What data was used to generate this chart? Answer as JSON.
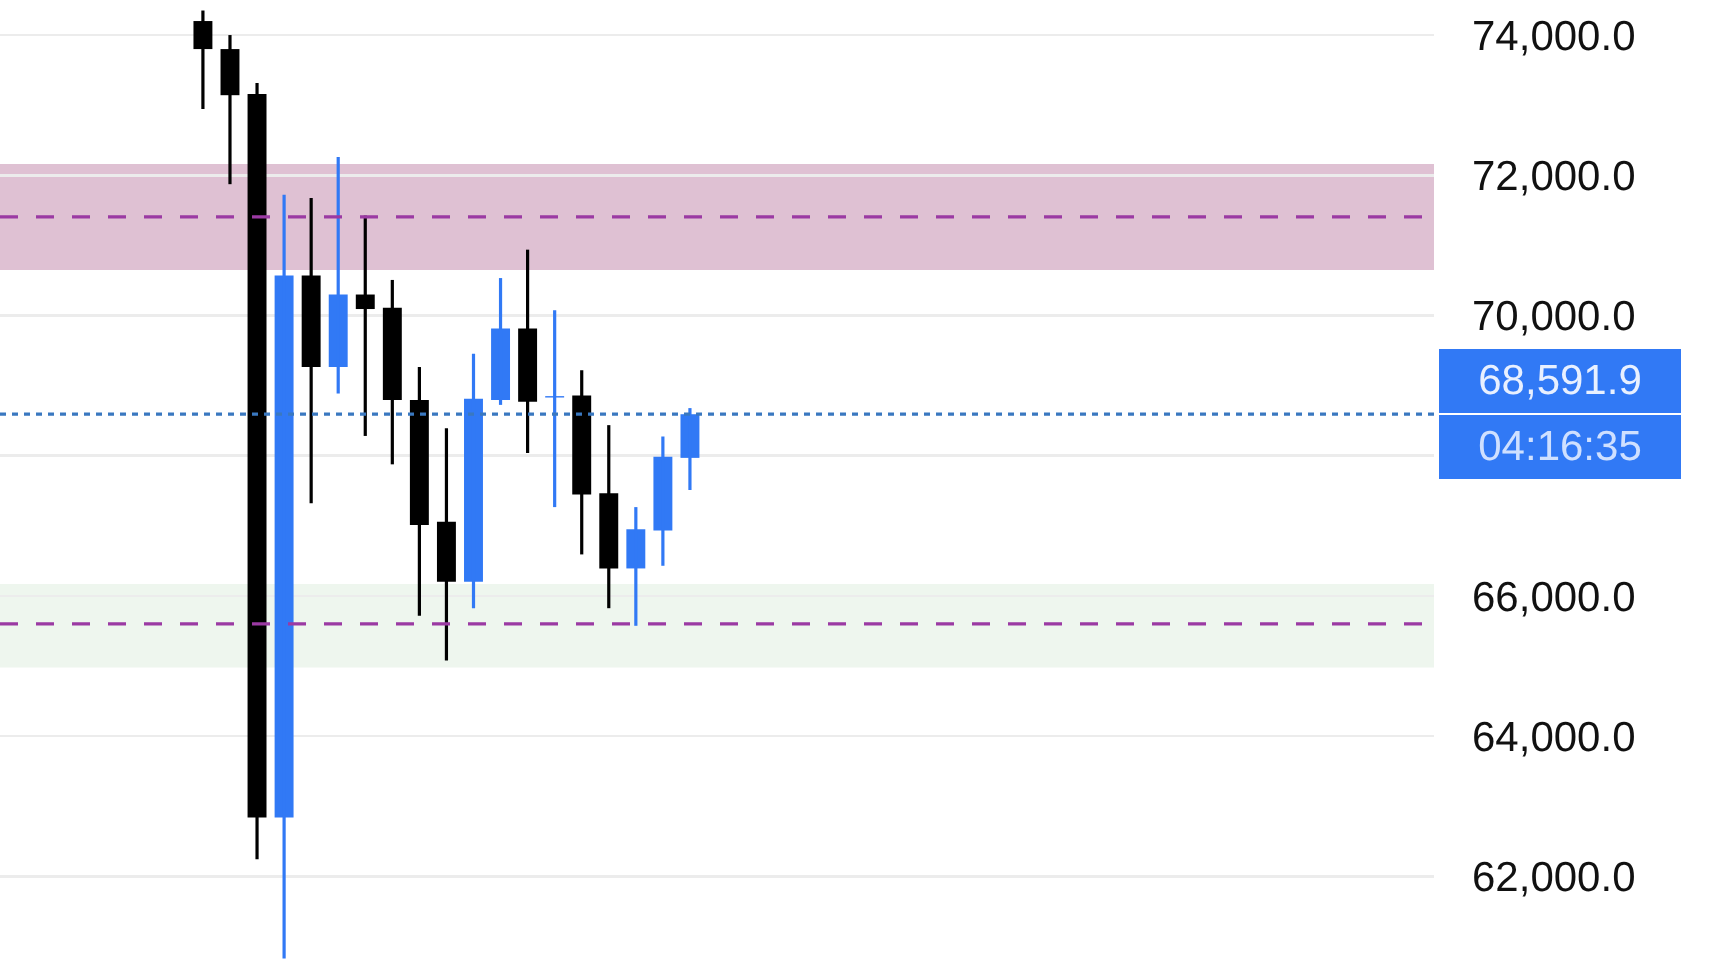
{
  "chart_data": {
    "type": "candlestick",
    "categories": [
      null,
      null,
      null,
      null,
      null,
      null,
      null,
      null,
      null,
      null,
      null,
      null,
      null,
      null,
      null,
      null,
      null,
      null,
      null,
      null,
      null,
      null,
      null,
      null,
      null,
      null,
      null,
      null,
      null,
      null,
      null,
      null,
      null,
      null,
      null,
      null,
      null,
      null,
      null,
      null,
      null,
      null,
      null,
      null,
      null,
      null,
      null,
      null,
      null,
      null,
      null,
      null,
      null
    ],
    "ohlc": [
      null,
      null,
      null,
      null,
      null,
      null,
      null,
      [
        74200,
        74350,
        72945,
        73800
      ],
      [
        73800,
        74000,
        71873,
        73142
      ],
      [
        73160,
        73315,
        62245,
        62839
      ],
      [
        62839,
        71722,
        60830,
        70569
      ],
      [
        70569,
        71676,
        67321,
        69265
      ],
      [
        69265,
        72261,
        68887,
        70299
      ],
      [
        70299,
        71425,
        68282,
        70092
      ],
      [
        70110,
        70507,
        67877,
        68795
      ],
      [
        68795,
        69265,
        65717,
        67013
      ],
      [
        67059,
        68390,
        65080,
        66203
      ],
      [
        66203,
        69454,
        65825,
        68814
      ],
      [
        68795,
        70534,
        68725,
        69813
      ],
      [
        69813,
        70939,
        68039,
        68768
      ],
      [
        68830,
        70075,
        67267,
        68850
      ],
      [
        68859,
        69219,
        66592,
        67446
      ],
      [
        67464,
        68436,
        65825,
        66392
      ],
      [
        66392,
        67267,
        65574,
        66951
      ],
      [
        66932,
        68274,
        66430,
        67985
      ],
      [
        67969,
        68679,
        67511,
        68591.9
      ],
      null,
      null,
      null,
      null,
      null,
      null,
      null,
      null,
      null,
      null,
      null,
      null,
      null,
      null,
      null,
      null,
      null,
      null,
      null,
      null,
      null,
      null,
      null,
      null,
      null,
      null,
      null
    ],
    "colors": [
      null,
      null,
      null,
      null,
      null,
      null,
      null,
      "#000000",
      "#000000",
      "#000000",
      "#3179f5",
      "#000000",
      "#3179f5",
      "#000000",
      "#000000",
      "#000000",
      "#000000",
      "#3179f5",
      "#3179f5",
      "#000000",
      "#3179f5",
      "#000000",
      "#000000",
      "#3179f5",
      "#3179f5",
      "#3179f5",
      null,
      null,
      null,
      null,
      null,
      null,
      null,
      null,
      null,
      null,
      null,
      null,
      null,
      null,
      null,
      null,
      null,
      null,
      null,
      null,
      null,
      null,
      null,
      null,
      null,
      null,
      null
    ],
    "ylim": [
      60750,
      74500
    ],
    "yticks": [
      {
        "value": 62000,
        "label": "62,000.0"
      },
      {
        "value": 64000,
        "label": "64,000.0"
      },
      {
        "value": 66000,
        "label": "66,000.0"
      },
      {
        "value": 68000,
        "label": null
      },
      {
        "value": 70000,
        "label": "70,000.0"
      },
      {
        "value": 72000,
        "label": "72,000.0"
      },
      {
        "value": 74000,
        "label": "74,000.0"
      }
    ],
    "grid": "y",
    "bands": [
      {
        "axis": "y",
        "from": 70650,
        "to": 72160,
        "color": "#dfc1d3"
      },
      {
        "axis": "y",
        "from": 64980,
        "to": 66170,
        "color": "#eef6ee"
      }
    ],
    "ref_lines": [
      {
        "axis": "y",
        "value": 71406,
        "color": "#9b3aa3",
        "line_style": "dashed"
      },
      {
        "axis": "y",
        "value": 65601,
        "color": "#9b3aa3",
        "line_style": "dashed"
      },
      {
        "axis": "y",
        "value": 68591.9,
        "label": "68,591.9",
        "color": "#3a78c0",
        "line_style": "dotted"
      }
    ],
    "annotations": [
      "04:16:35"
    ]
  }
}
